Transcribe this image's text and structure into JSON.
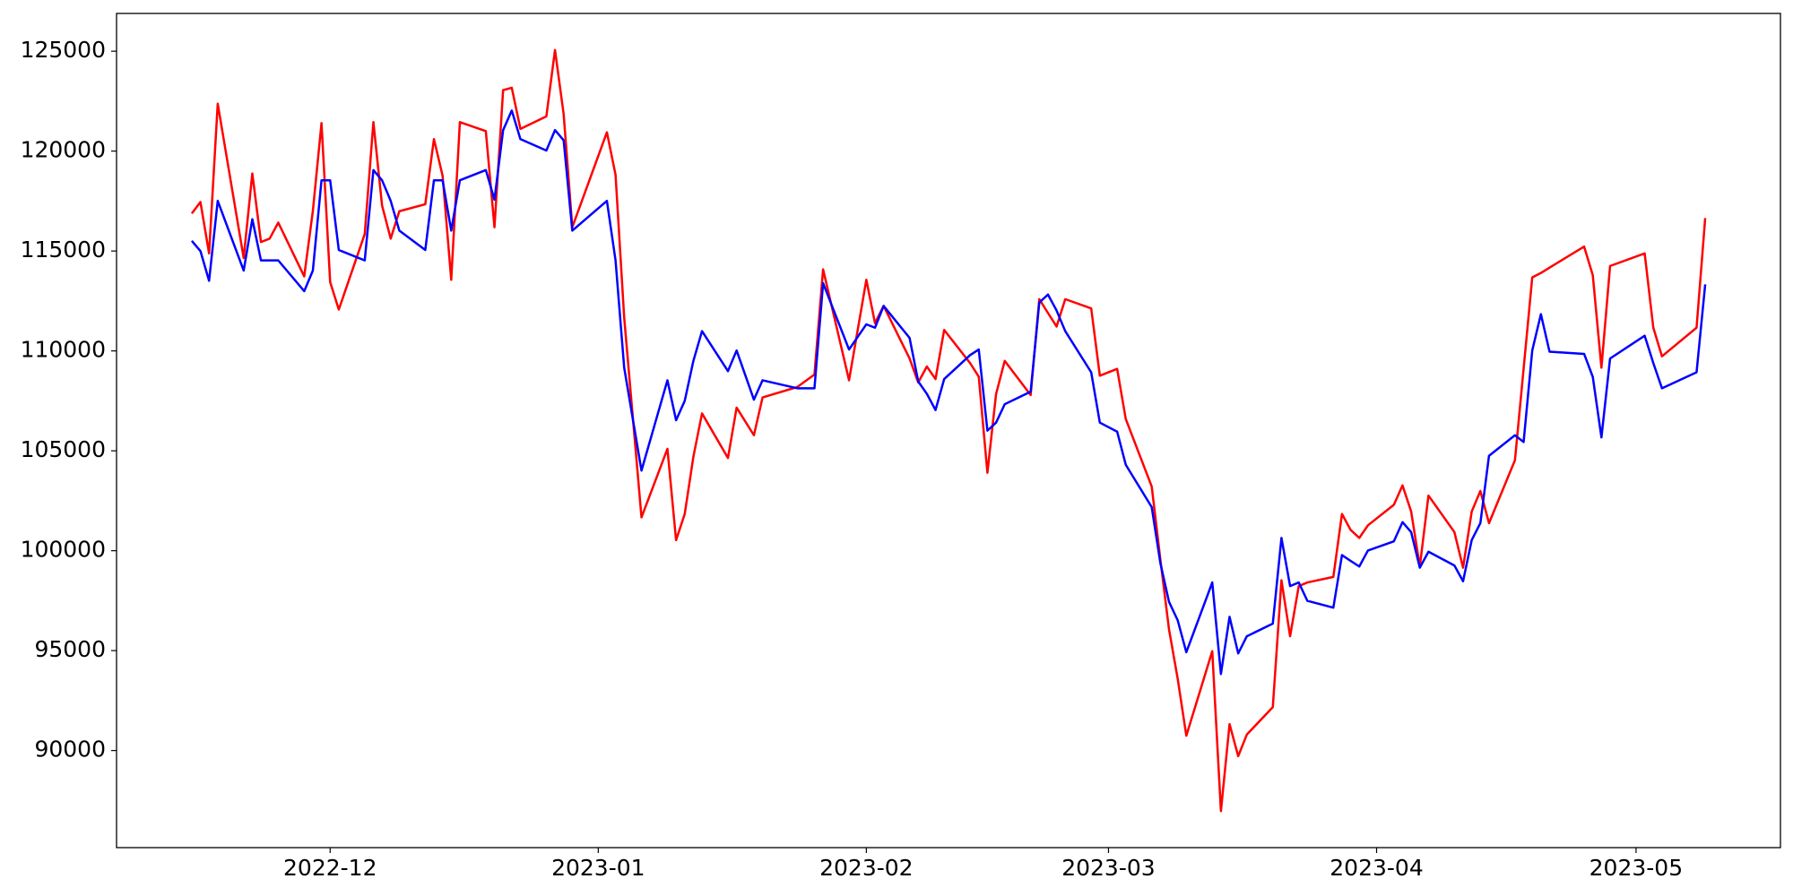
{
  "chart_data": {
    "type": "line",
    "x": [
      -16,
      -15,
      -14,
      -13,
      -10,
      -9,
      -8,
      -7,
      -6,
      -3,
      -2,
      -1,
      0,
      1,
      4,
      5,
      6,
      7,
      8,
      11,
      12,
      13,
      14,
      15,
      18,
      19,
      20,
      21,
      22,
      25,
      26,
      27,
      28,
      32,
      33,
      34,
      36,
      39,
      40,
      41,
      42,
      43,
      46,
      47,
      49,
      50,
      54,
      56,
      57,
      60,
      62,
      63,
      64,
      67,
      68,
      69,
      70,
      71,
      74,
      75,
      76,
      77,
      78,
      81,
      82,
      83,
      84,
      85,
      88,
      89,
      91,
      92,
      95,
      96,
      97,
      98,
      99,
      102,
      103,
      104,
      105,
      106,
      109,
      110,
      111,
      112,
      113,
      116,
      117,
      118,
      119,
      120,
      123,
      124,
      125,
      126,
      127,
      130,
      131,
      132,
      133,
      134,
      137,
      138,
      139,
      140,
      141,
      145,
      146,
      147,
      148,
      152,
      153,
      154,
      158,
      159
    ],
    "series": [
      {
        "color": "#ff0000",
        "values": [
          116880,
          117450,
          114880,
          122370,
          114650,
          118880,
          115450,
          115620,
          116420,
          113730,
          117000,
          121400,
          113450,
          112070,
          115850,
          121450,
          117280,
          115620,
          116990,
          117340,
          120600,
          118770,
          113560,
          121450,
          121000,
          116190,
          123050,
          123170,
          121110,
          121740,
          125060,
          121850,
          116190,
          120940,
          118820,
          111670,
          101670,
          105100,
          100530,
          101840,
          104700,
          106870,
          104640,
          107160,
          105780,
          107670,
          108190,
          108820,
          114080,
          108530,
          113560,
          111390,
          112250,
          109620,
          108420,
          109220,
          108590,
          111050,
          109390,
          108710,
          103900,
          107840,
          109500,
          107790,
          112590,
          111900,
          111220,
          112590,
          112130,
          108760,
          109100,
          106590,
          103210,
          99550,
          96060,
          93600,
          90740,
          94970,
          86970,
          91320,
          89720,
          90800,
          92170,
          98520,
          95720,
          98230,
          98410,
          98690,
          101840,
          101040,
          100640,
          101270,
          102300,
          103270,
          101960,
          99210,
          102760,
          100930,
          99150,
          101960,
          102990,
          101380,
          104530,
          109100,
          113680,
          113900,
          114170,
          115220,
          113790,
          109160,
          114250,
          114880,
          111160,
          109730,
          111160,
          116650
        ]
      },
      {
        "color": "#0000ff",
        "values": [
          115510,
          115000,
          113510,
          117510,
          114020,
          116590,
          114530,
          114530,
          114530,
          112990,
          114020,
          118540,
          118540,
          115050,
          114530,
          119050,
          118540,
          117510,
          116020,
          115050,
          118540,
          118540,
          116020,
          118540,
          119050,
          117570,
          121050,
          122030,
          120600,
          120030,
          121050,
          120540,
          116020,
          117510,
          114530,
          109160,
          104010,
          108530,
          106530,
          107500,
          109500,
          110990,
          108990,
          110020,
          107560,
          108530,
          108130,
          108130,
          113390,
          110070,
          111330,
          111160,
          112250,
          110650,
          108470,
          107850,
          107040,
          108590,
          109790,
          110070,
          106010,
          106410,
          107330,
          107960,
          112420,
          112820,
          112020,
          110990,
          108930,
          106410,
          105960,
          104300,
          102180,
          99380,
          97440,
          96520,
          94920,
          98410,
          93830,
          96690,
          94860,
          95720,
          96350,
          100640,
          98230,
          98410,
          97490,
          97150,
          99780,
          99490,
          99210,
          100010,
          100470,
          101430,
          100930,
          99150,
          99950,
          99260,
          98470,
          100530,
          101380,
          104750,
          105780,
          105440,
          110020,
          111840,
          109960,
          109850,
          108700,
          105670,
          109620,
          110760,
          109390,
          108130,
          108930,
          113330
        ]
      }
    ],
    "xlim": [
      -24.7,
      167.7
    ],
    "xticks": [
      {
        "value": 0,
        "label": "2022-12"
      },
      {
        "value": 31,
        "label": "2023-01"
      },
      {
        "value": 62,
        "label": "2023-02"
      },
      {
        "value": 90,
        "label": "2023-03"
      },
      {
        "value": 121,
        "label": "2023-04"
      },
      {
        "value": 151,
        "label": "2023-05"
      }
    ],
    "ylim": [
      85140,
      126890
    ],
    "yticks": [
      90000,
      95000,
      100000,
      105000,
      110000,
      115000,
      120000,
      125000
    ]
  }
}
